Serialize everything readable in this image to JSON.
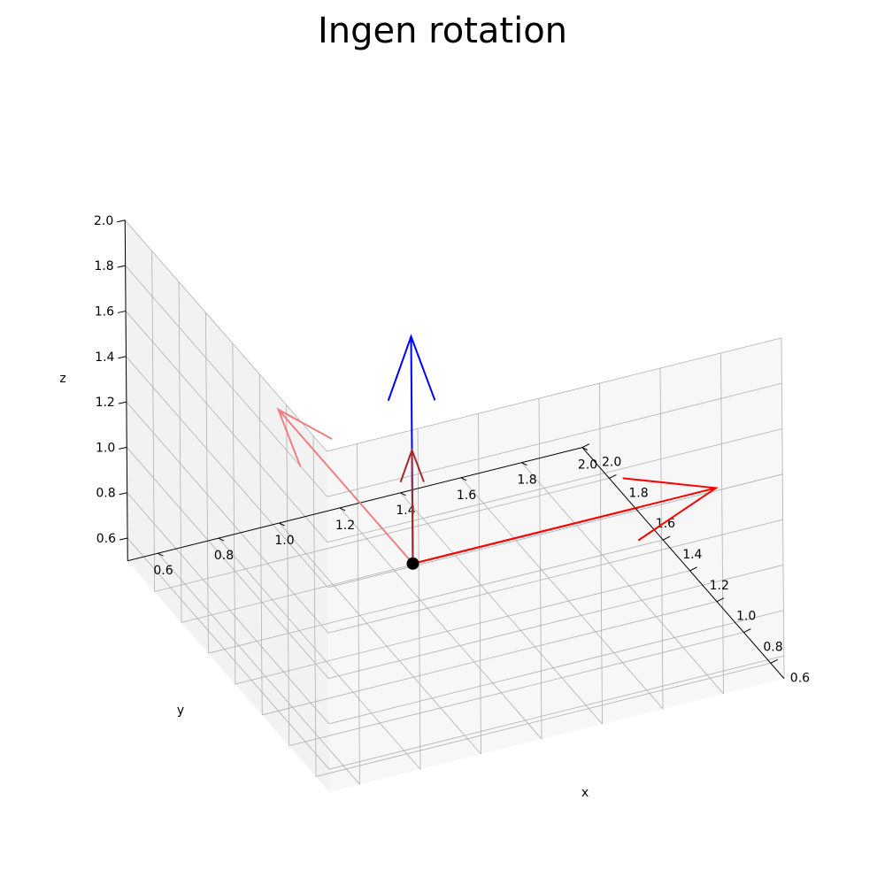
{
  "chart_data": {
    "type": "3d-quiver",
    "title": "Ingen rotation",
    "xlabel": "x",
    "ylabel": "y",
    "zlabel": "z",
    "xlim": [
      0.5,
      2.0
    ],
    "ylim": [
      0.5,
      2.0
    ],
    "zlim": [
      0.5,
      2.0
    ],
    "xticks": [
      "0.6",
      "0.8",
      "1.0",
      "1.2",
      "1.4",
      "1.6",
      "1.8",
      "2.0"
    ],
    "yticks": [
      "0.6",
      "0.8",
      "1.0",
      "1.2",
      "1.4",
      "1.6",
      "1.8",
      "2.0"
    ],
    "zticks": [
      "0.6",
      "0.8",
      "1.0",
      "1.2",
      "1.4",
      "1.6",
      "1.8",
      "2.0"
    ],
    "grid": true,
    "origin_point": {
      "x": 1.0,
      "y": 1.0,
      "z": 1.0,
      "color": "#000000"
    },
    "vectors": [
      {
        "color": "#ff0000",
        "dx": 1.0,
        "dy": 0.0,
        "dz": 0.0
      },
      {
        "color": "#f08080",
        "dx": 0.0,
        "dy": 1.0,
        "dz": 0.0
      },
      {
        "color": "#0000ff",
        "dx": 0.0,
        "dy": 0.0,
        "dz": 1.0
      },
      {
        "color": "#a52a2a",
        "dx": 0.0,
        "dy": 0.0,
        "dz": 0.5
      }
    ]
  }
}
